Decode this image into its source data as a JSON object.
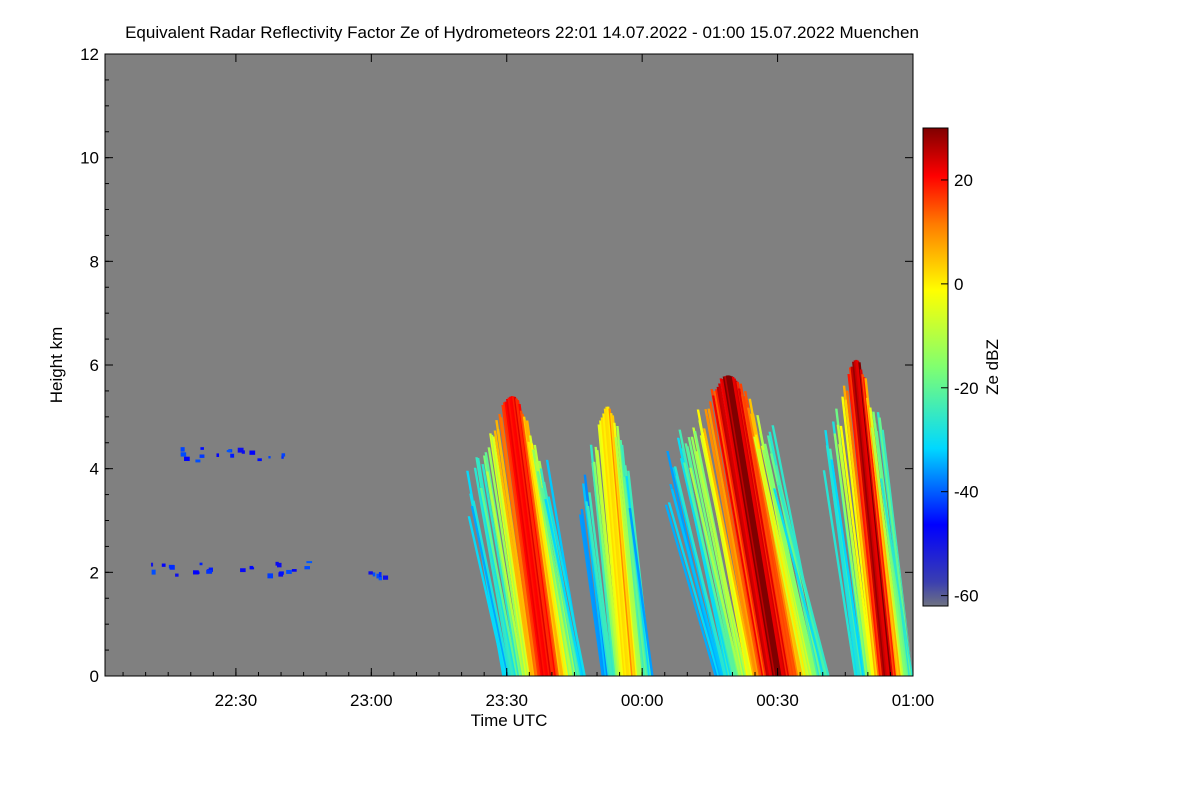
{
  "chart_data": {
    "type": "heatmap",
    "title": "Equivalent Radar Reflectivity Factor Ze of Hydrometeors   22:01 14.07.2022 - 01:00 15.07.2022 Muenchen",
    "xlabel": "Time UTC",
    "ylabel": "Height km",
    "x_start": "22:01",
    "x_end": "01:00",
    "x_ticks": [
      {
        "label": "22:30",
        "minutes": 29
      },
      {
        "label": "23:00",
        "minutes": 59
      },
      {
        "label": "23:30",
        "minutes": 89
      },
      {
        "label": "00:00",
        "minutes": 119
      },
      {
        "label": "00:30",
        "minutes": 149
      },
      {
        "label": "01:00",
        "minutes": 179
      }
    ],
    "ylim": [
      0,
      12
    ],
    "y_ticks": [
      0,
      2,
      4,
      6,
      8,
      10,
      12
    ],
    "colorbar": {
      "label": "Ze dBZ",
      "range": [
        -62,
        30
      ],
      "ticks": [
        20,
        0,
        -20,
        -40,
        -60
      ]
    },
    "background_color": "#808080",
    "clusters": [
      {
        "t0": 88,
        "t1": 106,
        "top": 5.4,
        "tilt": 8,
        "peak_dbz": 22
      },
      {
        "t0": 110,
        "t1": 121,
        "top": 5.2,
        "tilt": 5,
        "peak_dbz": 5
      },
      {
        "t0": 135,
        "t1": 160,
        "top": 5.8,
        "tilt": 11,
        "peak_dbz": 28
      },
      {
        "t0": 166,
        "t1": 179,
        "top": 6.1,
        "tilt": 7,
        "peak_dbz": 28
      }
    ],
    "echo_layers": [
      {
        "t0": 16,
        "t1": 40,
        "height": 4.3,
        "dbz": -45
      },
      {
        "t0": 10,
        "t1": 45,
        "height": 2.1,
        "dbz": -45
      },
      {
        "t0": 57,
        "t1": 62,
        "height": 2.0,
        "dbz": -45
      }
    ]
  }
}
